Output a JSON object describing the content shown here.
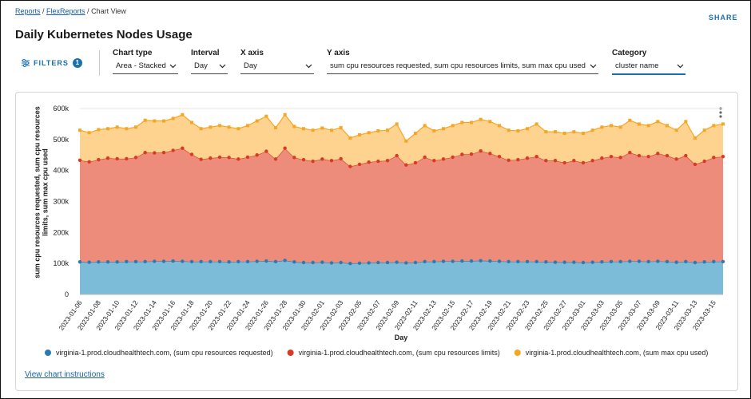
{
  "breadcrumb": [
    "Reports",
    "FlexReports",
    "Chart View"
  ],
  "share": "SHARE",
  "title": "Daily Kubernetes Nodes Usage",
  "filters": {
    "label": "FILTERS",
    "count": 1
  },
  "controls": [
    {
      "label": "Chart type",
      "value": "Area - Stacked"
    },
    {
      "label": "Interval",
      "value": "Day"
    },
    {
      "label": "X axis",
      "value": "Day"
    },
    {
      "label": "Y axis",
      "value": "sum cpu resources requested, sum cpu resources limits, sum max cpu used"
    },
    {
      "label": "Category",
      "value": "cluster name"
    }
  ],
  "chart_data": {
    "type": "area",
    "stacked": true,
    "y_label": "sum cpu resources requested, sum cpu resources limits, sum max cpu used",
    "x_label": "Day",
    "categories": [
      "2023-01-06",
      null,
      "2023-01-08",
      null,
      "2023-01-10",
      null,
      "2023-01-12",
      null,
      "2023-01-14",
      null,
      "2023-01-16",
      null,
      "2023-01-18",
      null,
      "2023-01-20",
      null,
      "2023-01-22",
      null,
      "2023-01-24",
      null,
      "2023-01-26",
      null,
      "2023-01-28",
      null,
      "2023-01-30",
      null,
      "2023-02-01",
      null,
      "2023-02-03",
      null,
      "2023-02-05",
      null,
      "2023-02-07",
      null,
      "2023-02-09",
      null,
      "2023-02-11",
      null,
      "2023-02-13",
      null,
      "2023-02-15",
      null,
      "2023-02-17",
      null,
      "2023-02-19",
      null,
      "2023-02-21",
      null,
      "2023-02-23",
      null,
      "2023-02-25",
      null,
      "2023-02-27",
      null,
      "2023-03-01",
      null,
      "2023-03-03",
      null,
      "2023-03-05",
      null,
      "2023-03-07",
      null,
      "2023-03-09",
      null,
      "2023-03-11",
      null,
      "2023-03-13",
      null,
      "2023-03-15",
      null
    ],
    "series": [
      {
        "name": "virginia-1.prod.cloudhealthtech.com, (sum cpu resources requested)",
        "color": "#2b7bb0",
        "fill": "#7dbcd9",
        "values": [
          105000,
          104000,
          105000,
          105000,
          105000,
          106000,
          106000,
          106000,
          107000,
          107000,
          108000,
          107000,
          106000,
          106000,
          106000,
          106000,
          105000,
          106000,
          106000,
          107000,
          108000,
          106000,
          110000,
          105000,
          103000,
          103000,
          104000,
          102000,
          103000,
          100000,
          101000,
          102000,
          103000,
          103000,
          104000,
          102000,
          103000,
          106000,
          106000,
          107000,
          107000,
          108000,
          108000,
          109000,
          108000,
          107000,
          106000,
          106000,
          106000,
          106000,
          105000,
          104000,
          104000,
          104000,
          103000,
          104000,
          105000,
          106000,
          106000,
          107000,
          107000,
          106000,
          107000,
          106000,
          104000,
          106000,
          103000,
          105000,
          106000,
          106000
        ]
      },
      {
        "name": "virginia-1.prod.cloudhealthtech.com, (sum cpu resources limits)",
        "color": "#d83a24",
        "fill": "#ee8c7b",
        "values": [
          328000,
          324000,
          330000,
          335000,
          333000,
          332000,
          336000,
          352000,
          350000,
          351000,
          357000,
          365000,
          346000,
          330000,
          334000,
          337000,
          337000,
          331000,
          337000,
          343000,
          354000,
          331000,
          362000,
          337000,
          332000,
          327000,
          333000,
          330000,
          335000,
          313000,
          319000,
          325000,
          327000,
          329000,
          344000,
          316000,
          322000,
          337000,
          326000,
          330000,
          336000,
          344000,
          345000,
          354000,
          347000,
          338000,
          327000,
          329000,
          334000,
          339000,
          327000,
          328000,
          321000,
          328000,
          322000,
          328000,
          335000,
          339000,
          336000,
          351000,
          341000,
          339000,
          348000,
          342000,
          333000,
          342000,
          317000,
          325000,
          336000,
          339000
        ]
      },
      {
        "name": "virginia-1.prod.cloudhealthtech.com, (sum max cpu used)",
        "color": "#f6a623",
        "fill": "#fdd38f",
        "values": [
          97000,
          94000,
          97000,
          95000,
          102000,
          97000,
          98000,
          104000,
          103000,
          102000,
          103000,
          108000,
          103000,
          99000,
          100000,
          102000,
          98000,
          98000,
          102000,
          110000,
          113000,
          101000,
          108000,
          100000,
          100000,
          100000,
          100000,
          98000,
          100000,
          92000,
          95000,
          95000,
          98000,
          98000,
          102000,
          77000,
          95000,
          102000,
          96000,
          98000,
          102000,
          103000,
          102000,
          102000,
          103000,
          100000,
          97000,
          93000,
          95000,
          105000,
          93000,
          93000,
          95000,
          93000,
          95000,
          98000,
          100000,
          100000,
          98000,
          104000,
          102000,
          100000,
          103000,
          97000,
          93000,
          110000,
          85000,
          100000,
          103000,
          105000
        ]
      }
    ],
    "ylim": [
      0,
      600000
    ],
    "yticks": [
      0,
      {
        "value": 100000,
        "label": "100k"
      },
      {
        "value": 200000,
        "label": "200k"
      },
      {
        "value": 300000,
        "label": "300k"
      },
      {
        "value": 400000,
        "label": "400k"
      },
      {
        "value": 500000,
        "label": "500k"
      },
      {
        "value": 600000,
        "label": "600k"
      }
    ],
    "grid": true,
    "legend": "bottom"
  },
  "link": "View chart instructions"
}
